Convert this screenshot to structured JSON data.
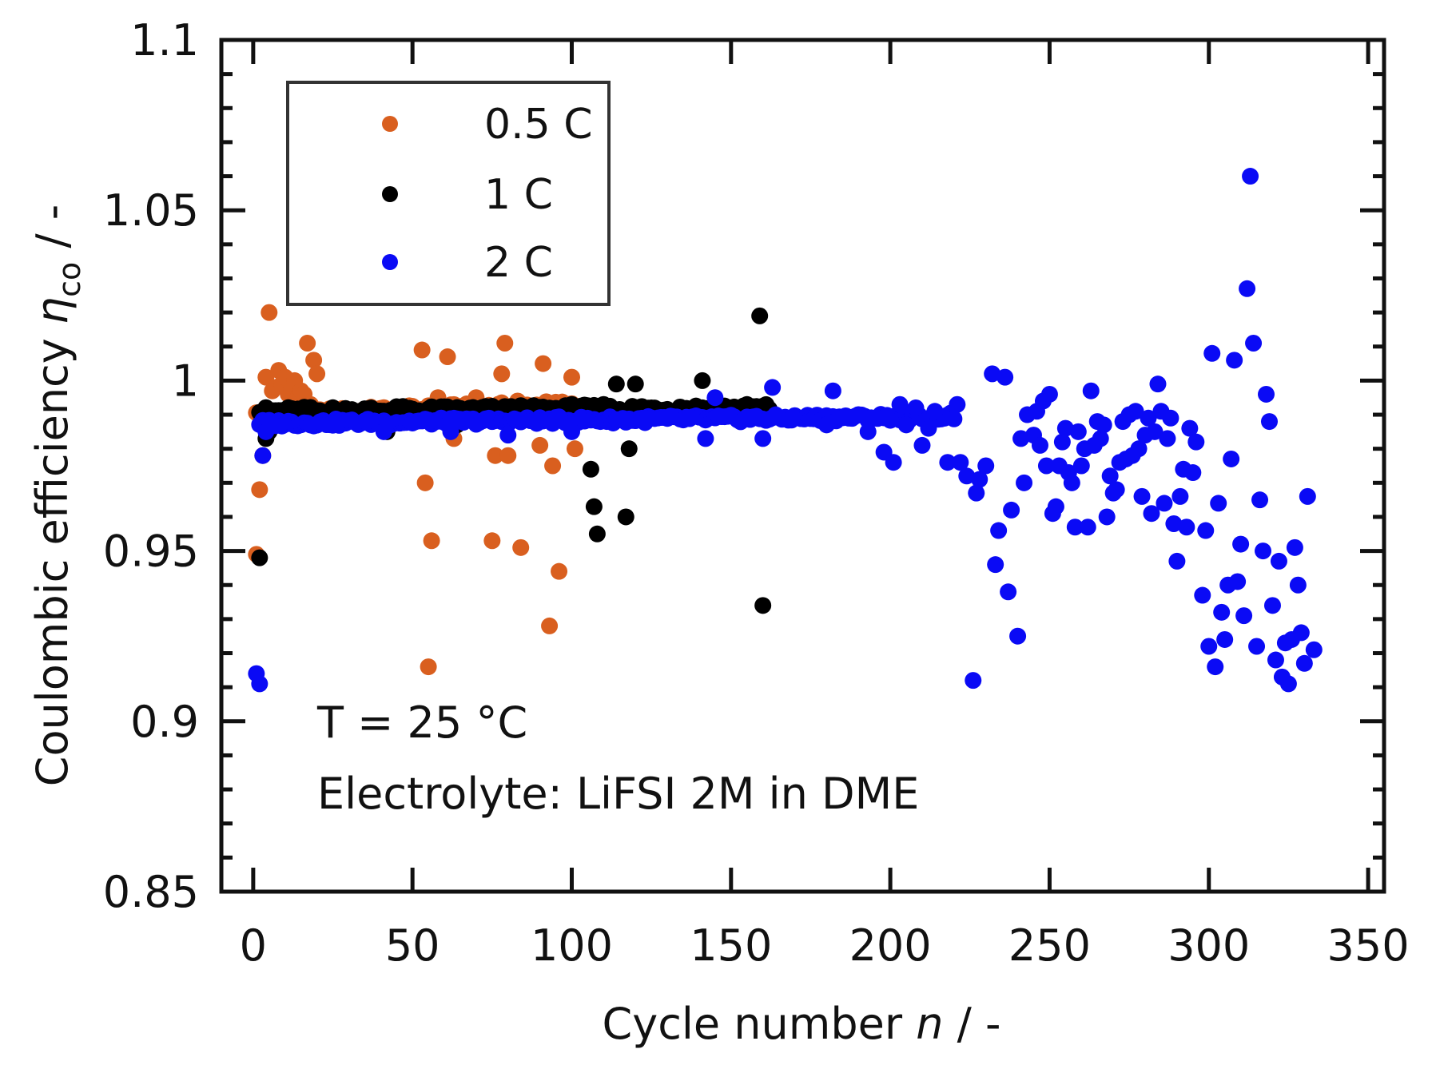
{
  "chart_data": {
    "type": "scatter",
    "xlabel": "Cycle number",
    "xlabel_var": "n",
    "xlabel_unit": " / -",
    "ylabel": "Coulombic efficiency",
    "ylabel_var": "η",
    "ylabel_sub": "co",
    "ylabel_unit": " / -",
    "xlim": [
      -10,
      355
    ],
    "ylim": [
      0.85,
      1.1
    ],
    "xticks": [
      0,
      50,
      100,
      150,
      200,
      250,
      300,
      350
    ],
    "yticks": [
      0.85,
      0.9,
      0.95,
      1.0,
      1.05,
      1.1
    ],
    "xtick_labels": [
      "0",
      "50",
      "100",
      "150",
      "200",
      "250",
      "300",
      "350"
    ],
    "ytick_labels": [
      "0.85",
      "0.9",
      "0.95",
      "1",
      "1.05",
      "1.1"
    ],
    "legend_position": "top-left",
    "series": [
      {
        "name": "0.5 C",
        "color": "#d95f1f",
        "base": {
          "from": 1,
          "to": 100,
          "start": 0.99,
          "end": 0.993,
          "jitter": 0.0012
        },
        "points": [
          [
            1,
            0.949
          ],
          [
            2,
            0.968
          ],
          [
            3,
            0.978
          ],
          [
            4,
            1.001
          ],
          [
            5,
            1.02
          ],
          [
            6,
            0.997
          ],
          [
            7,
            0.998
          ],
          [
            8,
            1.003
          ],
          [
            9,
            0.999
          ],
          [
            10,
            1.001
          ],
          [
            11,
            0.996
          ],
          [
            12,
            0.997
          ],
          [
            13,
            1.0
          ],
          [
            14,
            0.995
          ],
          [
            15,
            0.997
          ],
          [
            16,
            0.996
          ],
          [
            17,
            1.011
          ],
          [
            18,
            0.993
          ],
          [
            19,
            1.006
          ],
          [
            20,
            1.002
          ],
          [
            22,
            0.988
          ],
          [
            53,
            1.009
          ],
          [
            54,
            0.97
          ],
          [
            55,
            0.916
          ],
          [
            56,
            0.953
          ],
          [
            58,
            0.995
          ],
          [
            61,
            1.007
          ],
          [
            63,
            0.983
          ],
          [
            70,
            0.995
          ],
          [
            75,
            0.953
          ],
          [
            76,
            0.978
          ],
          [
            78,
            1.002
          ],
          [
            79,
            1.011
          ],
          [
            80,
            0.978
          ],
          [
            83,
            0.994
          ],
          [
            84,
            0.951
          ],
          [
            90,
            0.981
          ],
          [
            91,
            1.005
          ],
          [
            93,
            0.928
          ],
          [
            94,
            0.975
          ],
          [
            96,
            0.944
          ],
          [
            100,
            1.001
          ],
          [
            101,
            0.98
          ]
        ]
      },
      {
        "name": "1 C",
        "color": "#000000",
        "base": {
          "from": 2,
          "to": 162,
          "start": 0.991,
          "end": 0.992,
          "jitter": 0.0012
        },
        "points": [
          [
            2,
            0.948
          ],
          [
            3,
            0.99
          ],
          [
            4,
            0.983
          ],
          [
            5,
            0.985
          ],
          [
            6,
            0.99
          ],
          [
            20,
            0.987
          ],
          [
            42,
            0.985
          ],
          [
            62,
            0.986
          ],
          [
            64,
            0.987
          ],
          [
            100,
            0.993
          ],
          [
            106,
            0.974
          ],
          [
            107,
            0.963
          ],
          [
            108,
            0.955
          ],
          [
            110,
            0.993
          ],
          [
            114,
            0.999
          ],
          [
            116,
            0.99
          ],
          [
            117,
            0.96
          ],
          [
            118,
            0.98
          ],
          [
            120,
            0.999
          ],
          [
            125,
            0.99
          ],
          [
            141,
            1.0
          ],
          [
            159,
            1.019
          ],
          [
            160,
            0.934
          ],
          [
            161,
            0.99
          ]
        ]
      },
      {
        "name": "2 C",
        "color": "#0a0af5",
        "base": {
          "from": 2,
          "to": 220,
          "start": 0.9875,
          "end": 0.9895,
          "jitter": 0.001
        },
        "points": [
          [
            1,
            0.914
          ],
          [
            2,
            0.911
          ],
          [
            3,
            0.978
          ],
          [
            4,
            0.985
          ],
          [
            41,
            0.985
          ],
          [
            62,
            0.985
          ],
          [
            80,
            0.984
          ],
          [
            100,
            0.985
          ],
          [
            142,
            0.983
          ],
          [
            145,
            0.995
          ],
          [
            160,
            0.983
          ],
          [
            163,
            0.998
          ],
          [
            180,
            0.987
          ],
          [
            182,
            0.997
          ],
          [
            193,
            0.985
          ],
          [
            198,
            0.979
          ],
          [
            201,
            0.976
          ],
          [
            203,
            0.993
          ],
          [
            205,
            0.987
          ],
          [
            208,
            0.992
          ],
          [
            210,
            0.981
          ],
          [
            212,
            0.986
          ],
          [
            214,
            0.991
          ],
          [
            218,
            0.976
          ],
          [
            221,
            0.993
          ],
          [
            222,
            0.976
          ],
          [
            224,
            0.972
          ],
          [
            226,
            0.912
          ],
          [
            227,
            0.967
          ],
          [
            228,
            0.971
          ],
          [
            230,
            0.975
          ],
          [
            232,
            1.002
          ],
          [
            233,
            0.946
          ],
          [
            234,
            0.956
          ],
          [
            236,
            1.001
          ],
          [
            237,
            0.938
          ],
          [
            238,
            0.962
          ],
          [
            240,
            0.925
          ],
          [
            241,
            0.983
          ],
          [
            242,
            0.97
          ],
          [
            243,
            0.99
          ],
          [
            245,
            0.984
          ],
          [
            246,
            0.991
          ],
          [
            247,
            0.981
          ],
          [
            248,
            0.994
          ],
          [
            249,
            0.975
          ],
          [
            250,
            0.996
          ],
          [
            251,
            0.961
          ],
          [
            252,
            0.963
          ],
          [
            253,
            0.975
          ],
          [
            254,
            0.982
          ],
          [
            255,
            0.986
          ],
          [
            256,
            0.973
          ],
          [
            257,
            0.97
          ],
          [
            258,
            0.957
          ],
          [
            259,
            0.985
          ],
          [
            260,
            0.975
          ],
          [
            261,
            0.98
          ],
          [
            262,
            0.957
          ],
          [
            263,
            0.997
          ],
          [
            264,
            0.981
          ],
          [
            265,
            0.988
          ],
          [
            266,
            0.983
          ],
          [
            267,
            0.987
          ],
          [
            268,
            0.96
          ],
          [
            269,
            0.972
          ],
          [
            270,
            0.967
          ],
          [
            271,
            0.968
          ],
          [
            272,
            0.976
          ],
          [
            273,
            0.988
          ],
          [
            274,
            0.977
          ],
          [
            275,
            0.99
          ],
          [
            276,
            0.978
          ],
          [
            277,
            0.991
          ],
          [
            278,
            0.98
          ],
          [
            279,
            0.966
          ],
          [
            280,
            0.984
          ],
          [
            281,
            0.989
          ],
          [
            282,
            0.961
          ],
          [
            283,
            0.985
          ],
          [
            284,
            0.999
          ],
          [
            285,
            0.991
          ],
          [
            286,
            0.964
          ],
          [
            287,
            0.983
          ],
          [
            288,
            0.989
          ],
          [
            289,
            0.958
          ],
          [
            290,
            0.947
          ],
          [
            291,
            0.966
          ],
          [
            292,
            0.974
          ],
          [
            293,
            0.957
          ],
          [
            294,
            0.986
          ],
          [
            295,
            0.973
          ],
          [
            296,
            0.982
          ],
          [
            298,
            0.937
          ],
          [
            299,
            0.956
          ],
          [
            300,
            0.922
          ],
          [
            301,
            1.008
          ],
          [
            302,
            0.916
          ],
          [
            303,
            0.964
          ],
          [
            304,
            0.932
          ],
          [
            305,
            0.924
          ],
          [
            306,
            0.94
          ],
          [
            307,
            0.977
          ],
          [
            308,
            1.006
          ],
          [
            309,
            0.941
          ],
          [
            310,
            0.952
          ],
          [
            311,
            0.931
          ],
          [
            312,
            1.027
          ],
          [
            313,
            1.06
          ],
          [
            314,
            1.011
          ],
          [
            315,
            0.922
          ],
          [
            316,
            0.965
          ],
          [
            317,
            0.95
          ],
          [
            318,
            0.996
          ],
          [
            319,
            0.988
          ],
          [
            320,
            0.934
          ],
          [
            321,
            0.918
          ],
          [
            322,
            0.947
          ],
          [
            323,
            0.913
          ],
          [
            324,
            0.923
          ],
          [
            325,
            0.911
          ],
          [
            326,
            0.924
          ],
          [
            327,
            0.951
          ],
          [
            328,
            0.94
          ],
          [
            329,
            0.926
          ],
          [
            330,
            0.917
          ],
          [
            331,
            0.966
          ],
          [
            333,
            0.921
          ]
        ]
      }
    ],
    "annotations": [
      "T = 25 °C",
      "Electrolyte: LiFSI 2M in DME"
    ]
  }
}
